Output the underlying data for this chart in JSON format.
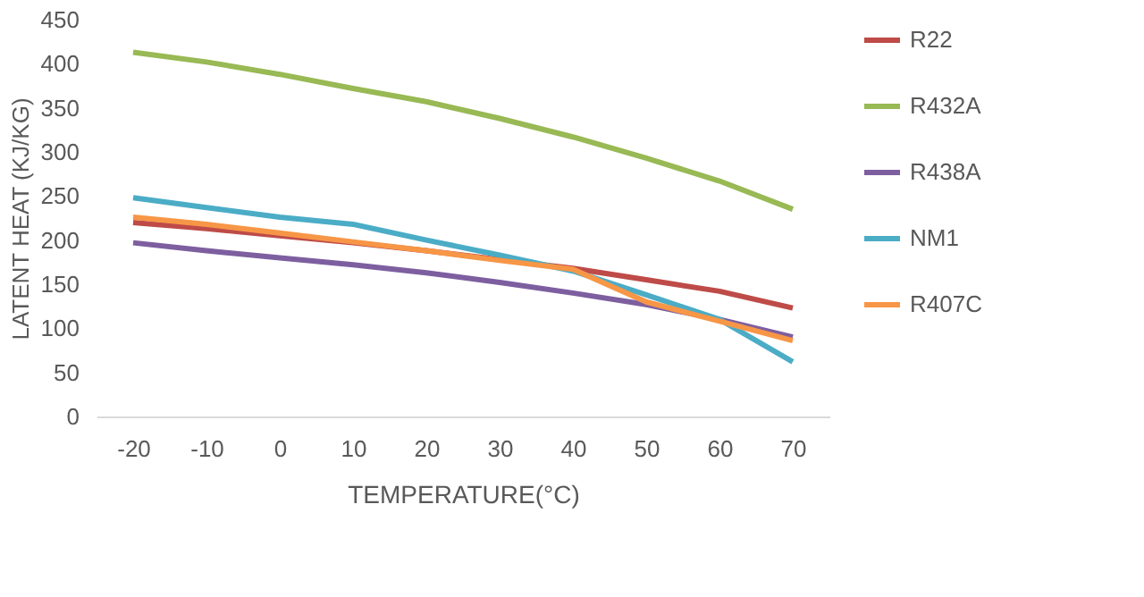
{
  "chart_data": {
    "type": "line",
    "xlabel": "TEMPERATURE(°C)",
    "ylabel": "LATENT HEAT (KJ/KG)",
    "categories": [
      "-20",
      "-10",
      "0",
      "10",
      "20",
      "30",
      "40",
      "50",
      "60",
      "70"
    ],
    "series": [
      {
        "name": "R22",
        "color": "#be4b48",
        "values": [
          220,
          213,
          205,
          197,
          188,
          178,
          168,
          155,
          142,
          123
        ]
      },
      {
        "name": "R432A",
        "color": "#98b954",
        "values": [
          413,
          402,
          388,
          372,
          357,
          338,
          317,
          293,
          267,
          235
        ]
      },
      {
        "name": "R438A",
        "color": "#7d5fa0",
        "values": [
          197,
          188,
          180,
          172,
          163,
          152,
          140,
          127,
          110,
          90
        ]
      },
      {
        "name": "NM1",
        "color": "#4bacc6",
        "values": [
          248,
          237,
          226,
          218,
          200,
          183,
          165,
          138,
          110,
          62
        ]
      },
      {
        "name": "R407C",
        "color": "#f79646",
        "values": [
          226,
          218,
          208,
          198,
          188,
          177,
          167,
          130,
          108,
          86
        ]
      }
    ],
    "ylim": [
      0,
      450
    ],
    "yticks": [
      0,
      50,
      100,
      150,
      200,
      250,
      300,
      350,
      400,
      450
    ],
    "grid": false,
    "legend": "right",
    "marker": "none",
    "line_style": "solid"
  }
}
